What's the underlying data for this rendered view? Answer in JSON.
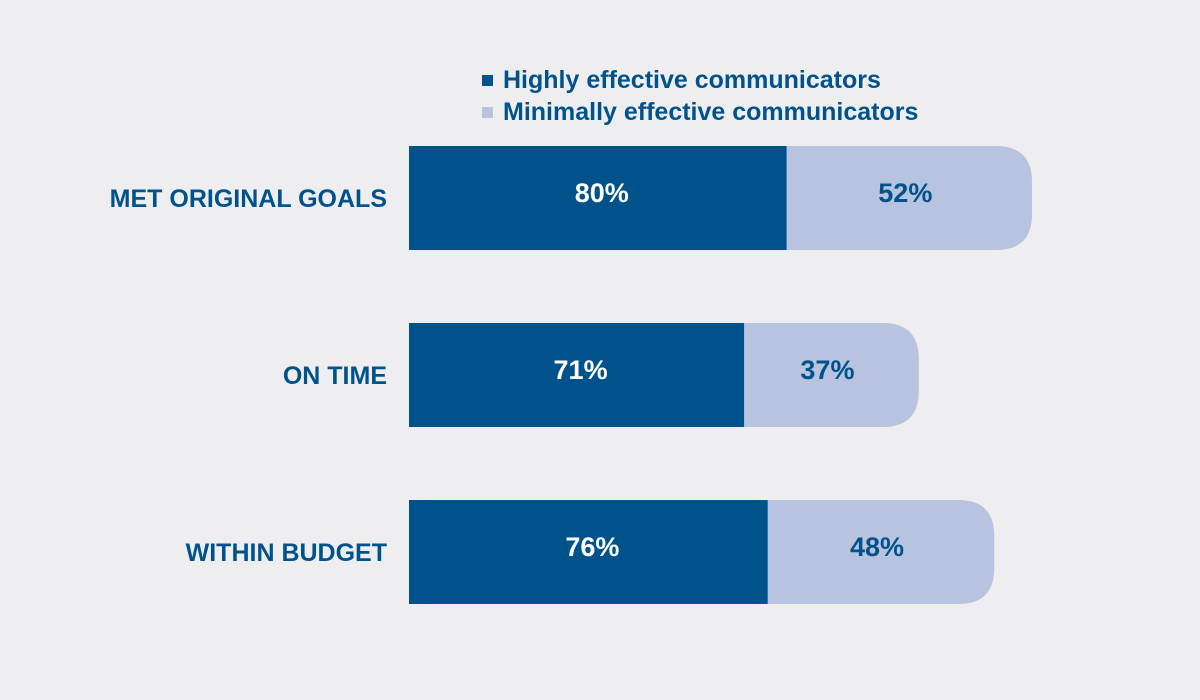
{
  "colors": {
    "background": "#eeeef0",
    "primary": "#00538a",
    "secondary": "#b8c3e0",
    "label_text": "#00538a",
    "value_on_primary": "#ffffff",
    "value_on_secondary": "#00538a"
  },
  "legend": {
    "items": [
      {
        "label": "Highly effective communicators",
        "color": "#00538a"
      },
      {
        "label": "Minimally effective communicators",
        "color": "#b8c3e0"
      }
    ]
  },
  "chart_data": {
    "type": "bar",
    "orientation": "horizontal",
    "stacked": true,
    "categories": [
      "MET ORIGINAL GOALS",
      "ON TIME",
      "WITHIN BUDGET"
    ],
    "series": [
      {
        "name": "Highly effective communicators",
        "values": [
          80,
          71,
          76
        ],
        "labels": [
          "80%",
          "71%",
          "76%"
        ]
      },
      {
        "name": "Minimally effective communicators",
        "values": [
          52,
          37,
          48
        ],
        "labels": [
          "52%",
          "37%",
          "48%"
        ]
      }
    ],
    "legend_position": "top",
    "grid": false,
    "axes_visible": false
  }
}
